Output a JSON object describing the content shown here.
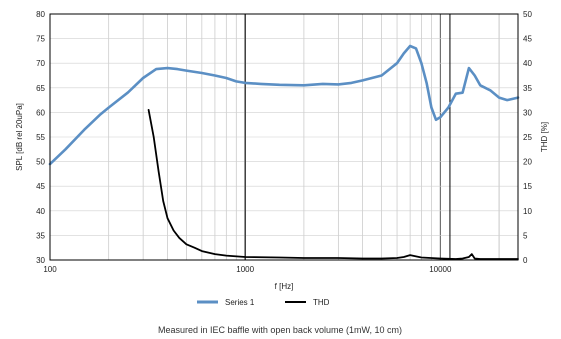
{
  "chart_data": {
    "type": "line",
    "xlabel": "f [Hz]",
    "ylabel_left": "SPL [dB rel 20uPa]",
    "ylabel_right": "THD [%]",
    "x_scale": "log",
    "xlim": [
      100,
      25000
    ],
    "ylim_left": [
      30,
      80
    ],
    "ylim_right": [
      0,
      50
    ],
    "x_tick_labels": [
      "100",
      "1000",
      "10000"
    ],
    "y_left_ticks": [
      "30",
      "35",
      "40",
      "45",
      "50",
      "55",
      "60",
      "65",
      "70",
      "75",
      "80"
    ],
    "y_right_ticks": [
      "0",
      "5",
      "10",
      "15",
      "20",
      "25",
      "30",
      "35",
      "40",
      "45",
      "50"
    ],
    "grid": true,
    "legend_position": "bottom-center",
    "caption": "Measured in IEC baffle with open back volume (1mW, 10 cm)",
    "series": [
      {
        "name": "Series 1",
        "axis": "left",
        "color": "#5b8fc4",
        "x": [
          100,
          120,
          150,
          180,
          200,
          250,
          300,
          350,
          400,
          450,
          500,
          600,
          700,
          800,
          900,
          1000,
          1200,
          1500,
          2000,
          2500,
          3000,
          3500,
          4000,
          5000,
          6000,
          6500,
          7000,
          7500,
          8000,
          8500,
          9000,
          9500,
          10000,
          11000,
          12000,
          13000,
          14000,
          15000,
          16000,
          18000,
          20000,
          22000,
          25000
        ],
        "values": [
          49.5,
          52.5,
          56.5,
          59.5,
          61,
          64,
          67,
          68.8,
          69,
          68.8,
          68.5,
          68,
          67.5,
          67,
          66.3,
          66,
          65.8,
          65.6,
          65.5,
          65.8,
          65.7,
          66,
          66.5,
          67.5,
          70,
          72,
          73.5,
          73,
          70,
          66,
          61,
          58.5,
          59,
          61,
          63.8,
          64,
          69,
          67.5,
          65.5,
          64.5,
          63,
          62.5,
          63
        ]
      },
      {
        "name": "THD",
        "axis": "right",
        "color": "#000000",
        "x": [
          320,
          340,
          360,
          380,
          400,
          430,
          460,
          500,
          550,
          600,
          700,
          800,
          1000,
          1500,
          2000,
          3000,
          4000,
          5000,
          6000,
          6500,
          7000,
          8000,
          10000,
          12000,
          13000,
          14000,
          14500,
          15000,
          16000,
          20000,
          25000
        ],
        "values": [
          30.5,
          25,
          18,
          12,
          8.5,
          6,
          4.5,
          3.2,
          2.5,
          1.8,
          1.2,
          0.9,
          0.6,
          0.5,
          0.4,
          0.4,
          0.3,
          0.3,
          0.4,
          0.6,
          1.0,
          0.5,
          0.3,
          0.2,
          0.3,
          0.6,
          1.2,
          0.3,
          0.2,
          0.2,
          0.2
        ]
      }
    ]
  }
}
